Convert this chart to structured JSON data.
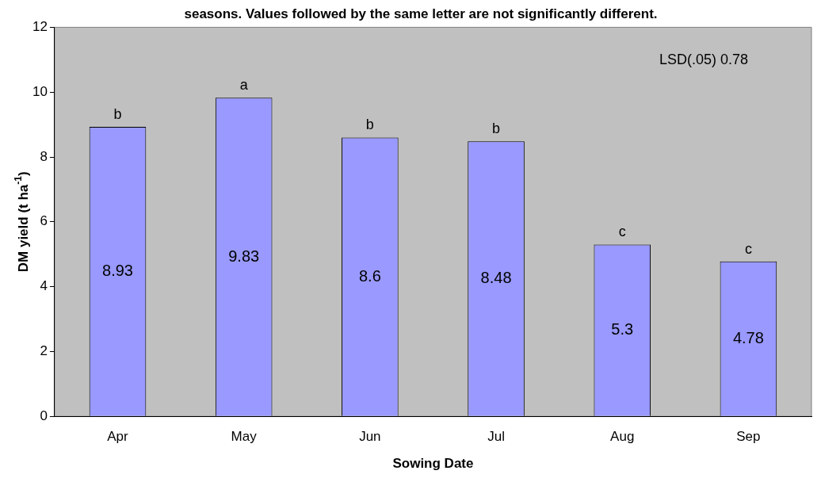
{
  "chart_data": {
    "type": "bar",
    "title": "seasons. Values followed by the same letter are not significantly different.",
    "xlabel": "Sowing Date",
    "ylabel": "DM yield (t ha$^{-1}$)",
    "categories": [
      "Apr",
      "May",
      "Jun",
      "Jul",
      "Aug",
      "Sep"
    ],
    "values": [
      8.93,
      9.83,
      8.6,
      8.48,
      5.3,
      4.78
    ],
    "color": "#9999ff",
    "data_labels": true,
    "ylim": [
      0,
      12
    ],
    "yticks": [
      0,
      2,
      4,
      6,
      8,
      10,
      12
    ],
    "grid": false,
    "legend": false,
    "annotations": [
      {
        "text": "b",
        "x": "Apr",
        "y": 8.93
      },
      {
        "text": "a",
        "x": "May",
        "y": 9.83
      },
      {
        "text": "b",
        "x": "Jun",
        "y": 8.6
      },
      {
        "text": "b",
        "x": "Jul",
        "y": 8.48
      },
      {
        "text": "c",
        "x": "Aug",
        "y": 5.3
      },
      {
        "text": "c",
        "x": "Sep",
        "y": 4.78
      },
      "LSD(.05) 0.78"
    ]
  }
}
